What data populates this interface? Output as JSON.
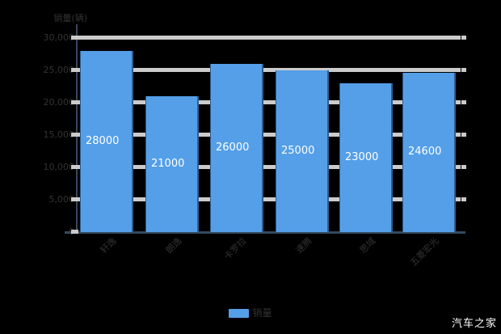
{
  "watermark": "汽车之家",
  "chart_data": {
    "type": "bar",
    "title": "",
    "ylabel": "销量(辆)",
    "xlabel": "",
    "categories": [
      "轩逸",
      "朗逸",
      "卡罗拉",
      "速腾",
      "思域",
      "五菱宏光"
    ],
    "values": [
      28000,
      21000,
      26000,
      25000,
      23000,
      24600
    ],
    "value_labels": [
      "28000",
      "21000",
      "26000",
      "25000",
      "23000",
      "24600"
    ],
    "ylim": [
      0,
      30000
    ],
    "y_ticks": [
      {
        "label": "30,000",
        "value": 30000
      },
      {
        "label": "25,000",
        "value": 25000
      },
      {
        "label": "20,000",
        "value": 20000
      },
      {
        "label": "15,000",
        "value": 15000
      },
      {
        "label": "10,000",
        "value": 10000
      },
      {
        "label": "5,000",
        "value": 5000
      },
      {
        "label": "0",
        "value": 0
      }
    ],
    "grid": "on",
    "legend": {
      "label": "销量",
      "position": "bottom"
    },
    "colors": {
      "bar": "#549fe8",
      "gridline": "#cbcbcb",
      "axis": "#34495e",
      "tick_text": "#333333",
      "value_text": "#ffffff",
      "watermark_text": "#ffffff"
    }
  }
}
